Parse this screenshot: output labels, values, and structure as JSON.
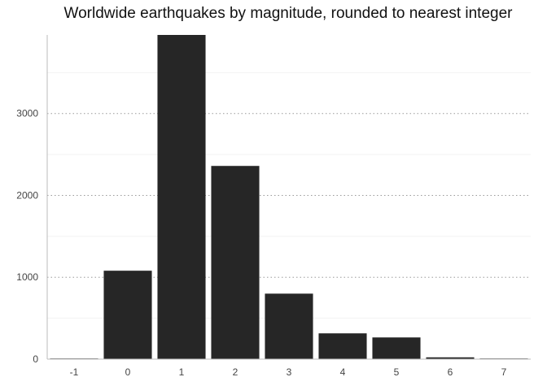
{
  "chart_data": {
    "type": "bar",
    "title": "Worldwide earthquakes by magnitude, rounded to nearest integer",
    "xlabel": "",
    "ylabel": "",
    "categories": [
      "-1",
      "0",
      "1",
      "2",
      "3",
      "4",
      "5",
      "6",
      "7"
    ],
    "values": [
      3,
      1080,
      3960,
      2360,
      800,
      315,
      265,
      22,
      3
    ],
    "ylim": [
      0,
      3960
    ],
    "yticks": [
      0,
      1000,
      2000,
      3000
    ],
    "grid": true,
    "legend": "none",
    "bar_color": "#262626",
    "grid_color": "#9a9a9a",
    "axis_color": "#bbbbbb"
  }
}
